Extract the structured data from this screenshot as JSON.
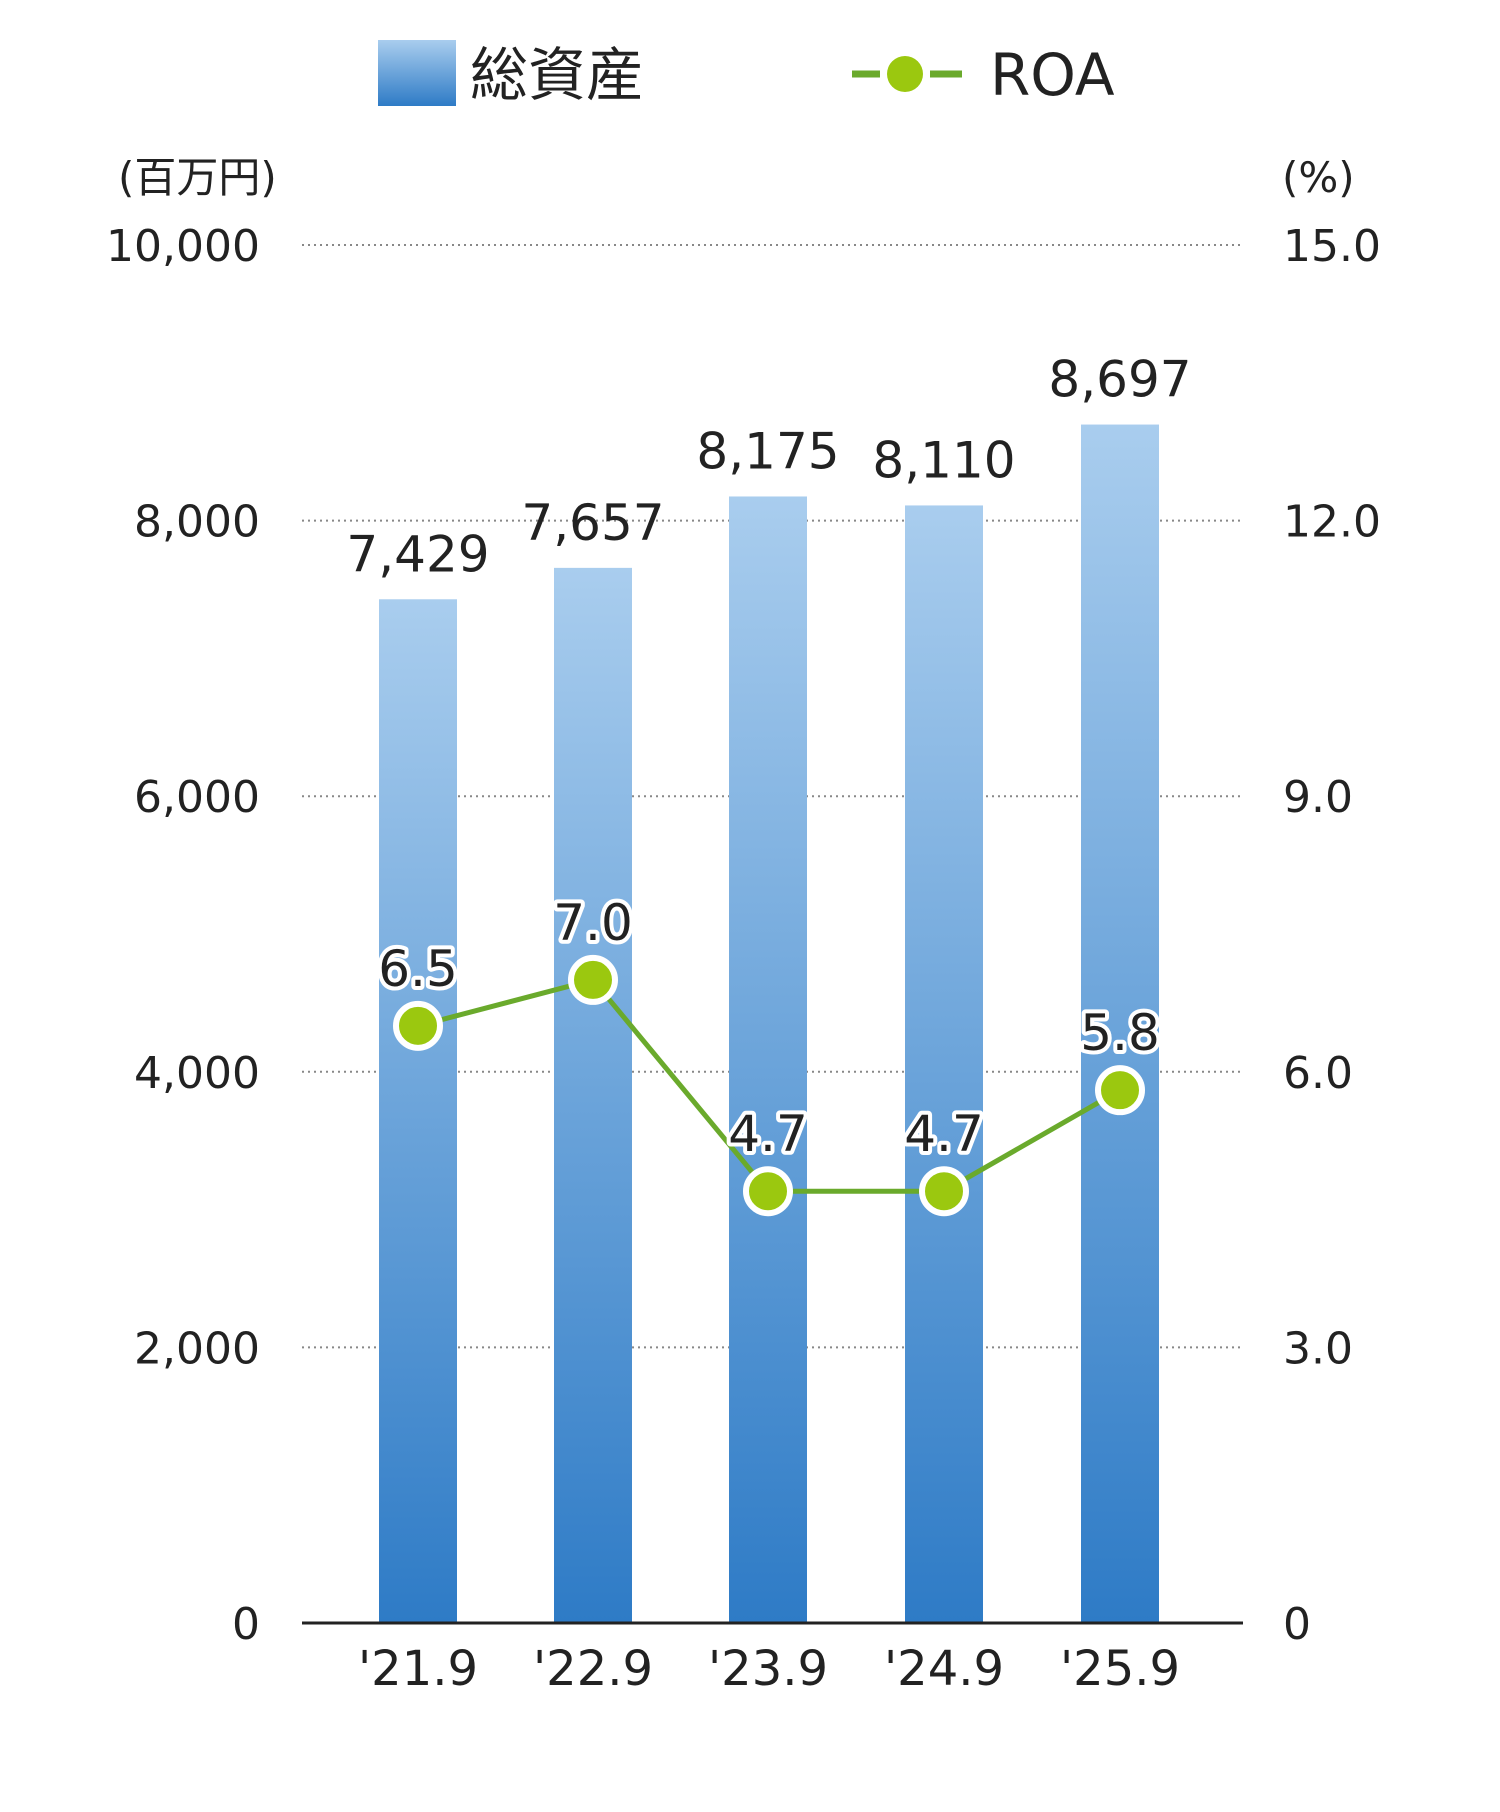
{
  "chart_data": {
    "type": "bar+line",
    "categories": [
      "'21.9",
      "'22.9",
      "'23.9",
      "'24.9",
      "'25.9"
    ],
    "series": [
      {
        "name": "総資産",
        "type": "bar",
        "axis": "left",
        "values": [
          7429,
          7657,
          8175,
          8110,
          8697
        ],
        "labels": [
          "7,429",
          "7,657",
          "8,175",
          "8,110",
          "8,697"
        ]
      },
      {
        "name": "ROA",
        "type": "line",
        "axis": "right",
        "values": [
          6.5,
          7.0,
          4.7,
          4.7,
          5.8
        ],
        "labels": [
          "6.5",
          "7.0",
          "4.7",
          "4.7",
          "5.8"
        ]
      }
    ],
    "left_axis": {
      "unit": "(百万円)",
      "ylim": [
        0,
        10000
      ],
      "ticks": [
        0,
        2000,
        4000,
        6000,
        8000,
        10000
      ],
      "tick_labels": [
        "0",
        "2,000",
        "4,000",
        "6,000",
        "8,000",
        "10,000"
      ]
    },
    "right_axis": {
      "unit": "(%)",
      "ylim": [
        0,
        15
      ],
      "ticks": [
        0,
        3,
        6,
        9,
        12,
        15
      ],
      "tick_labels": [
        "0",
        "3.0",
        "6.0",
        "9.0",
        "12.0",
        "15.0"
      ]
    },
    "legend": [
      {
        "label": "総資産",
        "kind": "bar"
      },
      {
        "label": "ROA",
        "kind": "line"
      }
    ],
    "colors": {
      "bar_top": "#a9cdee",
      "bar_bottom": "#2e7bc6",
      "line": "#6aaa2c",
      "marker": "#9bc80f",
      "grid": "#888888"
    },
    "grid": true
  }
}
